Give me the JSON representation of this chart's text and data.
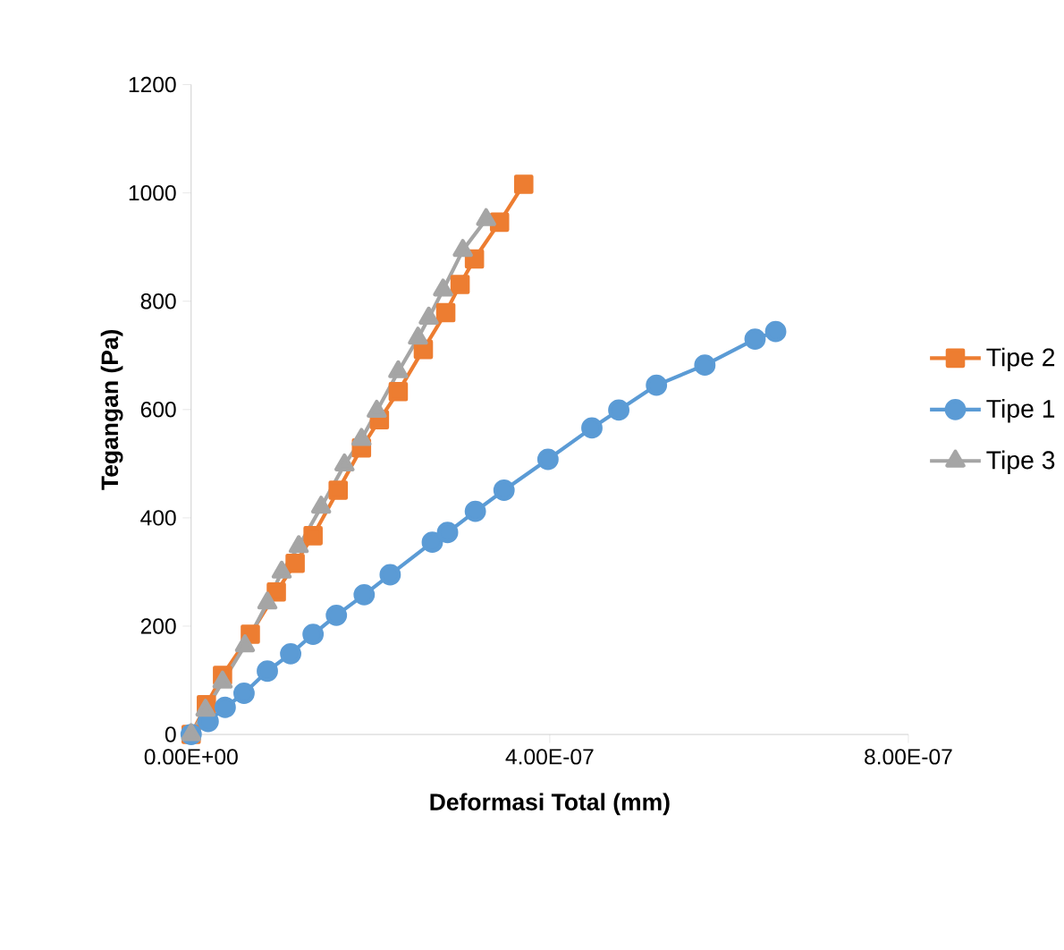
{
  "chart_data": {
    "type": "line",
    "xlabel": "Deformasi Total (mm)",
    "ylabel": "Tegangan (Pa)",
    "xlim": [
      0,
      8e-07
    ],
    "xticks": [
      {
        "value": 0,
        "label": "0.00E+00"
      },
      {
        "value": 4e-07,
        "label": "4.00E-07"
      },
      {
        "value": 8e-07,
        "label": "8.00E-07"
      }
    ],
    "ylim": [
      0,
      1200
    ],
    "yticks": [
      0,
      200,
      400,
      600,
      800,
      1000,
      1200
    ],
    "grid": false,
    "legend": "right",
    "line_style": "solid",
    "series": [
      {
        "name": "Tipe 2",
        "color": "#ed7d31",
        "marker": "square",
        "x": [
          0,
          1.7e-08,
          3.5e-08,
          6.6e-08,
          9.5e-08,
          1.16e-07,
          1.36e-07,
          1.64e-07,
          1.9e-07,
          2.1e-07,
          2.31e-07,
          2.59e-07,
          2.84e-07,
          3e-07,
          3.16e-07,
          3.44e-07,
          3.71e-07
        ],
        "values": [
          0,
          55,
          109,
          185,
          263,
          316,
          367,
          451,
          529,
          581,
          633,
          711,
          779,
          831,
          878,
          946,
          1016
        ]
      },
      {
        "name": "Tipe 1",
        "color": "#5b9bd5",
        "marker": "circle",
        "x": [
          0,
          1.9e-08,
          3.8e-08,
          5.9e-08,
          8.5e-08,
          1.11e-07,
          1.36e-07,
          1.62e-07,
          1.93e-07,
          2.22e-07,
          2.69e-07,
          2.86e-07,
          3.17e-07,
          3.49e-07,
          3.98e-07,
          4.47e-07,
          4.77e-07,
          5.19e-07,
          5.73e-07,
          6.29e-07,
          6.52e-07
        ],
        "values": [
          0,
          24,
          50,
          76,
          117,
          149,
          185,
          220,
          258,
          295,
          355,
          373,
          412,
          451,
          508,
          566,
          599,
          645,
          682,
          730,
          744
        ]
      },
      {
        "name": "Tipe 3",
        "color": "#a5a5a5",
        "marker": "triangle",
        "x": [
          0,
          1.6e-08,
          3.5e-08,
          6e-08,
          8.5e-08,
          1.01e-07,
          1.2e-07,
          1.45e-07,
          1.71e-07,
          1.9e-07,
          2.07e-07,
          2.31e-07,
          2.53e-07,
          2.65e-07,
          2.81e-07,
          3.03e-07,
          3.29e-07
        ],
        "values": [
          0,
          45,
          97,
          164,
          243,
          300,
          347,
          420,
          498,
          545,
          597,
          670,
          732,
          769,
          821,
          894,
          951
        ]
      }
    ]
  }
}
